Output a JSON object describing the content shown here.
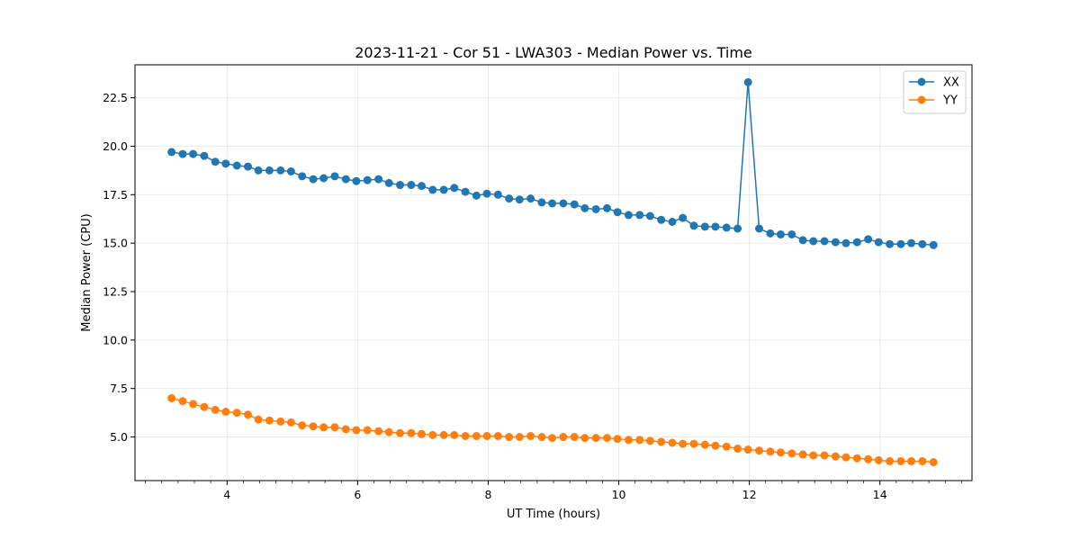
{
  "chart_data": {
    "type": "line",
    "title": "2023-11-21 - Cor 51 - LWA303 - Median Power vs. Time",
    "xlabel": "UT Time (hours)",
    "ylabel": "Median Power (CPU)",
    "xlim": [
      2.59,
      15.41
    ],
    "ylim": [
      2.75,
      24.2
    ],
    "xticks": [
      4,
      6,
      8,
      10,
      12,
      14
    ],
    "xtick_labels": [
      "4",
      "6",
      "8",
      "10",
      "12",
      "14"
    ],
    "xminor_step": 0.25,
    "yticks": [
      5.0,
      7.5,
      10.0,
      12.5,
      15.0,
      17.5,
      20.0,
      22.5
    ],
    "ytick_labels": [
      "5.0",
      "7.5",
      "10.0",
      "12.5",
      "15.0",
      "17.5",
      "20.0",
      "22.5"
    ],
    "grid": true,
    "legend_position": "top-right",
    "x": [
      3.15,
      3.32,
      3.48,
      3.65,
      3.82,
      3.98,
      4.15,
      4.32,
      4.48,
      4.65,
      4.82,
      4.98,
      5.15,
      5.32,
      5.48,
      5.65,
      5.82,
      5.98,
      6.15,
      6.32,
      6.48,
      6.65,
      6.82,
      6.98,
      7.15,
      7.32,
      7.48,
      7.65,
      7.82,
      7.98,
      8.15,
      8.32,
      8.48,
      8.65,
      8.82,
      8.98,
      9.15,
      9.32,
      9.48,
      9.65,
      9.82,
      9.98,
      10.15,
      10.32,
      10.48,
      10.65,
      10.82,
      10.98,
      11.15,
      11.32,
      11.48,
      11.65,
      11.82,
      11.98,
      12.15,
      12.32,
      12.48,
      12.65,
      12.82,
      12.98,
      13.15,
      13.32,
      13.48,
      13.65,
      13.82,
      13.98,
      14.15,
      14.32,
      14.48,
      14.65,
      14.82
    ],
    "series": [
      {
        "name": "XX",
        "color": "#1f77b4",
        "values": [
          19.7,
          19.6,
          19.6,
          19.5,
          19.2,
          19.1,
          19.0,
          18.95,
          18.75,
          18.75,
          18.75,
          18.7,
          18.45,
          18.3,
          18.35,
          18.45,
          18.3,
          18.2,
          18.25,
          18.3,
          18.1,
          18.0,
          18.0,
          17.95,
          17.75,
          17.75,
          17.85,
          17.65,
          17.45,
          17.55,
          17.5,
          17.3,
          17.25,
          17.3,
          17.1,
          17.05,
          17.05,
          17.0,
          16.8,
          16.75,
          16.8,
          16.6,
          16.45,
          16.45,
          16.4,
          16.2,
          16.1,
          16.3,
          15.9,
          15.85,
          15.85,
          15.8,
          15.75,
          23.3,
          15.75,
          15.5,
          15.45,
          15.45,
          15.15,
          15.1,
          15.1,
          15.05,
          15.0,
          15.05,
          15.2,
          15.05,
          14.95,
          14.95,
          15.0,
          14.95,
          14.9
        ]
      },
      {
        "name": "YY",
        "color": "#ff7f0e",
        "values": [
          7.0,
          6.85,
          6.7,
          6.55,
          6.4,
          6.3,
          6.25,
          6.15,
          5.9,
          5.85,
          5.8,
          5.75,
          5.6,
          5.55,
          5.5,
          5.5,
          5.4,
          5.35,
          5.35,
          5.3,
          5.25,
          5.2,
          5.2,
          5.15,
          5.1,
          5.1,
          5.1,
          5.05,
          5.05,
          5.05,
          5.05,
          5.0,
          5.0,
          5.05,
          5.0,
          4.95,
          5.0,
          5.0,
          4.95,
          4.95,
          4.95,
          4.9,
          4.85,
          4.85,
          4.8,
          4.75,
          4.7,
          4.65,
          4.65,
          4.6,
          4.55,
          4.5,
          4.4,
          4.35,
          4.3,
          4.25,
          4.2,
          4.15,
          4.1,
          4.05,
          4.05,
          4.0,
          3.95,
          3.9,
          3.85,
          3.8,
          3.75,
          3.75,
          3.75,
          3.75,
          3.7
        ]
      }
    ]
  }
}
